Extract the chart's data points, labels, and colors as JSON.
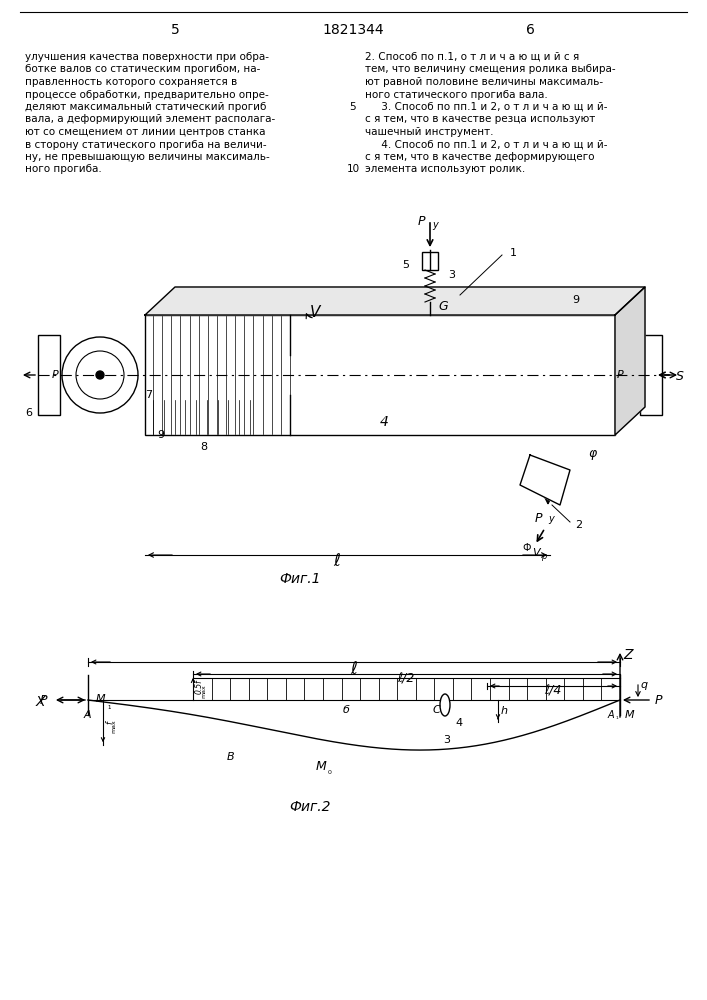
{
  "page_left": "5",
  "page_center": "1821344",
  "page_right": "6",
  "text_left": [
    "улучшения качества поверхности при обра-",
    "ботке валов со статическим прогибом, на-",
    "правленность которого сохраняется в",
    "процессе обработки, предварительно опре-",
    "деляют максимальный статический прогиб",
    "вала, а деформирующий элемент располага-",
    "ют со смещением от линии центров станка",
    "в сторону статического прогиба на величи-",
    "ну, не превышающую величины максималь-",
    "ного прогиба."
  ],
  "text_right_lines": [
    "2. Способ по п.1, о т л и ч а ю щ и й с я",
    "тем, что величину смещения ролика выбира-",
    "ют равной половине величины максималь-",
    "ного статического прогиба вала.",
    "     3. Способ по пп.1 и 2, о т л и ч а ю щ и й-",
    "с я тем, что в качестве резца используют",
    "чашечный инструмент.",
    "     4. Способ по пп.1 и 2, о т л и ч а ю щ и й-",
    "с я тем, что в качестве деформирующего",
    "элемента используют ролик."
  ],
  "fig1_caption": "Фиг.1",
  "fig2_caption": "Фиг.2"
}
